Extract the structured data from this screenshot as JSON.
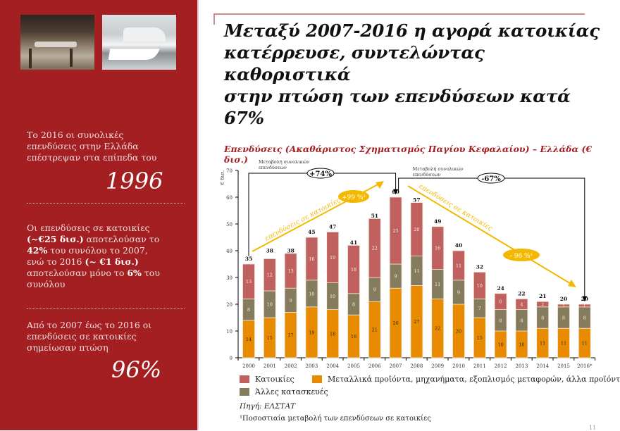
{
  "sidebar": {
    "photos": [
      {
        "name": "cafe-terrace-photo",
        "alt": "Outdoor café tables and chairs"
      },
      {
        "name": "harbour-ferry-photo",
        "alt": "Ferry boats at harbour with bridge"
      }
    ],
    "block1": {
      "text": "Το 2016 οι συνολικές επενδύσεις στην Ελλάδα επέστρεψαν στα επίπεδα του",
      "big": "1996"
    },
    "block2": {
      "line1": "Οι επενδύσεις σε κατοικίες",
      "bold1": "(~€25 δισ.)",
      "text2": " αποτελούσαν το",
      "bold2": "42%",
      "text3": " του συνόλου το 2007,",
      "text4": "ενώ το 2016 ",
      "bold3": "(~ €1 δισ.)",
      "text5": "αποτελούσαν μόνο το ",
      "bold4": "6%",
      "text6": " του",
      "text7": "συνόλου"
    },
    "block3": {
      "text": "Από το 2007 έως το 2016 οι επενδύσεις σε κατοικίες σημείωσαν πτώση",
      "big": "96%"
    }
  },
  "header": {
    "title_line1": "Μεταξύ 2007-2016 η αγορά κατοικίας",
    "title_line2": "κατέρρευσε, συντελώντας καθοριστικά",
    "title_line3": "στην πτώση των επενδύσεων κατά 67%"
  },
  "chart": {
    "title": "Επενδύσεις (Ακαθάριστος Σχηματισμός Παγίου Κεφαλαίου) – Ελλάδα (€ δισ.)",
    "ylabel": "€ δισ.",
    "annotations": {
      "bracket1_label_l1": "Μεταβολή συνολικών",
      "bracket1_label_l2": "επενδύσεων",
      "bracket1_value": "+74%",
      "bracket2_label_l1": "Μεταβολή συνολικών",
      "bracket2_label_l2": "επενδύσεων",
      "bracket2_value": "-67%",
      "arrow_up_label": "επενδύσεις σε κατοικίες",
      "arrow_up_value": "+99 %¹",
      "arrow_down_label": "επενδύσεις σε κατοικίες",
      "arrow_down_value": "- 96 %¹"
    },
    "colors": {
      "housing": "#c0605f",
      "other_construction": "#857b5d",
      "equipment": "#e98b00",
      "arrow": "#f5b800",
      "accent": "#a31f22"
    }
  },
  "legend": {
    "housing": "Κατοικίες",
    "equipment": "Μεταλλικά προϊόντα, μηχανήματα, εξοπλισμός μεταφορών, άλλα προϊόντα",
    "other_construction": "Άλλες κατασκευές"
  },
  "source": "Πηγή: ΕΛΣΤΑΤ",
  "footnote": "¹Ποσοστιαία μεταβολή των επενδύσεων σε κατοικίες",
  "page_number": "11",
  "chart_data": {
    "type": "bar",
    "stacked": true,
    "title": "Επενδύσεις (Ακαθάριστος Σχηματισμός Παγίου Κεφαλαίου) – Ελλάδα (€ δισ.)",
    "xlabel": "",
    "ylabel": "€ δισ.",
    "ylim": [
      0,
      70
    ],
    "yticks": [
      0,
      10,
      20,
      30,
      40,
      50,
      60,
      70
    ],
    "categories": [
      "2000",
      "2001",
      "2002",
      "2003",
      "2004",
      "2005",
      "2006",
      "2007",
      "2008",
      "2009",
      "2010",
      "2011",
      "2012",
      "2013",
      "2014",
      "2015",
      "2016*"
    ],
    "series": [
      {
        "name": "Μεταλλικά προϊόντα, μηχανήματα, εξοπλισμός μεταφορών, άλλα προϊόντα",
        "color": "#e98b00",
        "values": [
          14,
          15,
          17,
          19,
          18,
          16,
          21,
          26,
          27,
          22,
          20,
          15,
          10,
          10,
          11,
          11,
          11
        ]
      },
      {
        "name": "Άλλες κατασκευές",
        "color": "#857b5d",
        "values": [
          8,
          10,
          9,
          10,
          10,
          8,
          9,
          9,
          11,
          11,
          9,
          7,
          8,
          8,
          8,
          8,
          8
        ]
      },
      {
        "name": "Κατοικίες",
        "color": "#c0605f",
        "values": [
          13,
          12,
          13,
          16,
          19,
          18,
          22,
          25,
          20,
          16,
          11,
          10,
          6,
          4,
          2,
          1,
          1
        ]
      }
    ],
    "totals": [
      35,
      38,
      38,
      45,
      47,
      41,
      51,
      60,
      57,
      49,
      40,
      32,
      24,
      22,
      21,
      20,
      20
    ],
    "annotations": [
      {
        "type": "bracket",
        "from": "2000",
        "to": "2007",
        "label": "Μεταβολή συνολικών επενδύσεων",
        "value": "+74%"
      },
      {
        "type": "bracket",
        "from": "2007",
        "to": "2016*",
        "label": "Μεταβολή συνολικών επενδύσεων",
        "value": "-67%"
      },
      {
        "type": "arrow",
        "direction": "up",
        "from": "2000",
        "to": "2007",
        "label": "επενδύσεις σε κατοικίες",
        "value": "+99 %¹"
      },
      {
        "type": "arrow",
        "direction": "down",
        "from": "2007",
        "to": "2016*",
        "label": "επενδύσεις σε κατοικίες",
        "value": "- 96 %¹"
      }
    ],
    "grid": false,
    "legend_position": "bottom"
  }
}
